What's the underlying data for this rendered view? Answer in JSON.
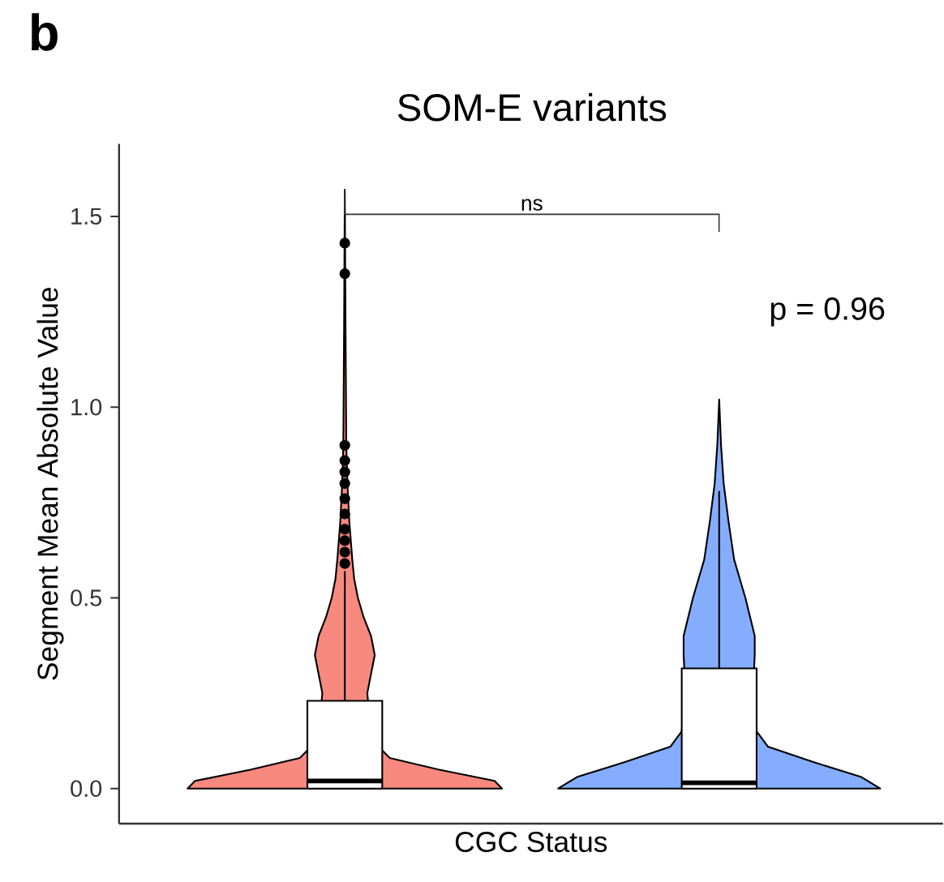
{
  "chart_data": {
    "type": "box",
    "title": "SOM-E variants",
    "xlabel": "CGC Status",
    "ylabel": "Segment Mean Absolute Value",
    "categories": [
      null,
      null
    ],
    "annotations": [
      "b",
      "ns",
      "p = 0.96"
    ],
    "ylim": [
      -0.092,
      1.69
    ],
    "yticks": [
      {
        "value": 0,
        "label": "0.0"
      },
      {
        "value": 0.5,
        "label": "0.5"
      },
      {
        "value": 1,
        "label": "1.0"
      },
      {
        "value": 1.5,
        "label": "1.5"
      }
    ],
    "boxes": [
      {
        "low": 0,
        "q1": 0,
        "median": 0.02,
        "q3": 0.23,
        "high": 0.57,
        "outliers": [
          0.59,
          0.62,
          0.65,
          0.68,
          0.72,
          0.76,
          0.8,
          0.83,
          0.86,
          0.9,
          1.35,
          1.43
        ]
      },
      {
        "low": 0,
        "q1": 0,
        "median": 0.015,
        "q3": 0.315,
        "high": 0.78
      }
    ]
  }
}
